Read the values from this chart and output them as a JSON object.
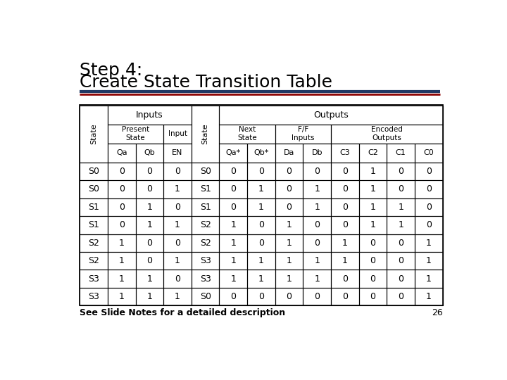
{
  "title_line1": "Step 4:",
  "title_line2": "Create State Transition Table",
  "title_color": "#000000",
  "title_fontsize": 18,
  "separator_color1": "#1F3864",
  "separator_color2": "#8B0000",
  "background_color": "#FFFFFF",
  "footer_text": "See Slide Notes for a detailed description",
  "page_number": "26",
  "table": {
    "data_rows": [
      [
        "S0",
        "0",
        "0",
        "0",
        "S0",
        "0",
        "0",
        "0",
        "0",
        "0",
        "1",
        "0",
        "0"
      ],
      [
        "S0",
        "0",
        "0",
        "1",
        "S1",
        "0",
        "1",
        "0",
        "1",
        "0",
        "1",
        "0",
        "0"
      ],
      [
        "S1",
        "0",
        "1",
        "0",
        "S1",
        "0",
        "1",
        "0",
        "1",
        "0",
        "1",
        "1",
        "0"
      ],
      [
        "S1",
        "0",
        "1",
        "1",
        "S2",
        "1",
        "0",
        "1",
        "0",
        "0",
        "1",
        "1",
        "0"
      ],
      [
        "S2",
        "1",
        "0",
        "0",
        "S2",
        "1",
        "0",
        "1",
        "0",
        "1",
        "0",
        "0",
        "1"
      ],
      [
        "S2",
        "1",
        "0",
        "1",
        "S3",
        "1",
        "1",
        "1",
        "1",
        "1",
        "0",
        "0",
        "1"
      ],
      [
        "S3",
        "1",
        "1",
        "0",
        "S3",
        "1",
        "1",
        "1",
        "1",
        "0",
        "0",
        "0",
        "1"
      ],
      [
        "S3",
        "1",
        "1",
        "1",
        "S0",
        "0",
        "0",
        "0",
        "0",
        "0",
        "0",
        "0",
        "1"
      ]
    ]
  }
}
